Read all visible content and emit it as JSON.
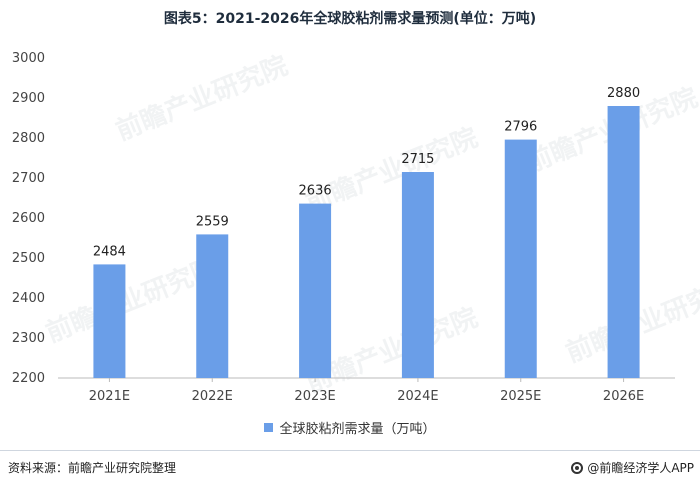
{
  "title": "图表5：2021-2026年全球胶粘剂需求量预测(单位：万吨)",
  "source": "资料来源：前瞻产业研究院整理",
  "brand": "@前瞻经济学人APP",
  "watermark": "前瞻产业研究院",
  "colors": {
    "bar": "#6a9ee8",
    "axis": "#bbbbbb"
  },
  "chart_data": {
    "type": "bar",
    "categories": [
      "2021E",
      "2022E",
      "2023E",
      "2024E",
      "2025E",
      "2026E"
    ],
    "series": [
      {
        "name": "全球胶粘剂需求量（万吨）",
        "values": [
          2484,
          2559,
          2636,
          2715,
          2796,
          2880
        ]
      }
    ],
    "ylim": [
      2200,
      3000
    ],
    "yticks": [
      2200,
      2300,
      2400,
      2500,
      2600,
      2700,
      2800,
      2900,
      3000
    ],
    "grid": false,
    "legend": "bottom-center",
    "data_labels": true
  }
}
